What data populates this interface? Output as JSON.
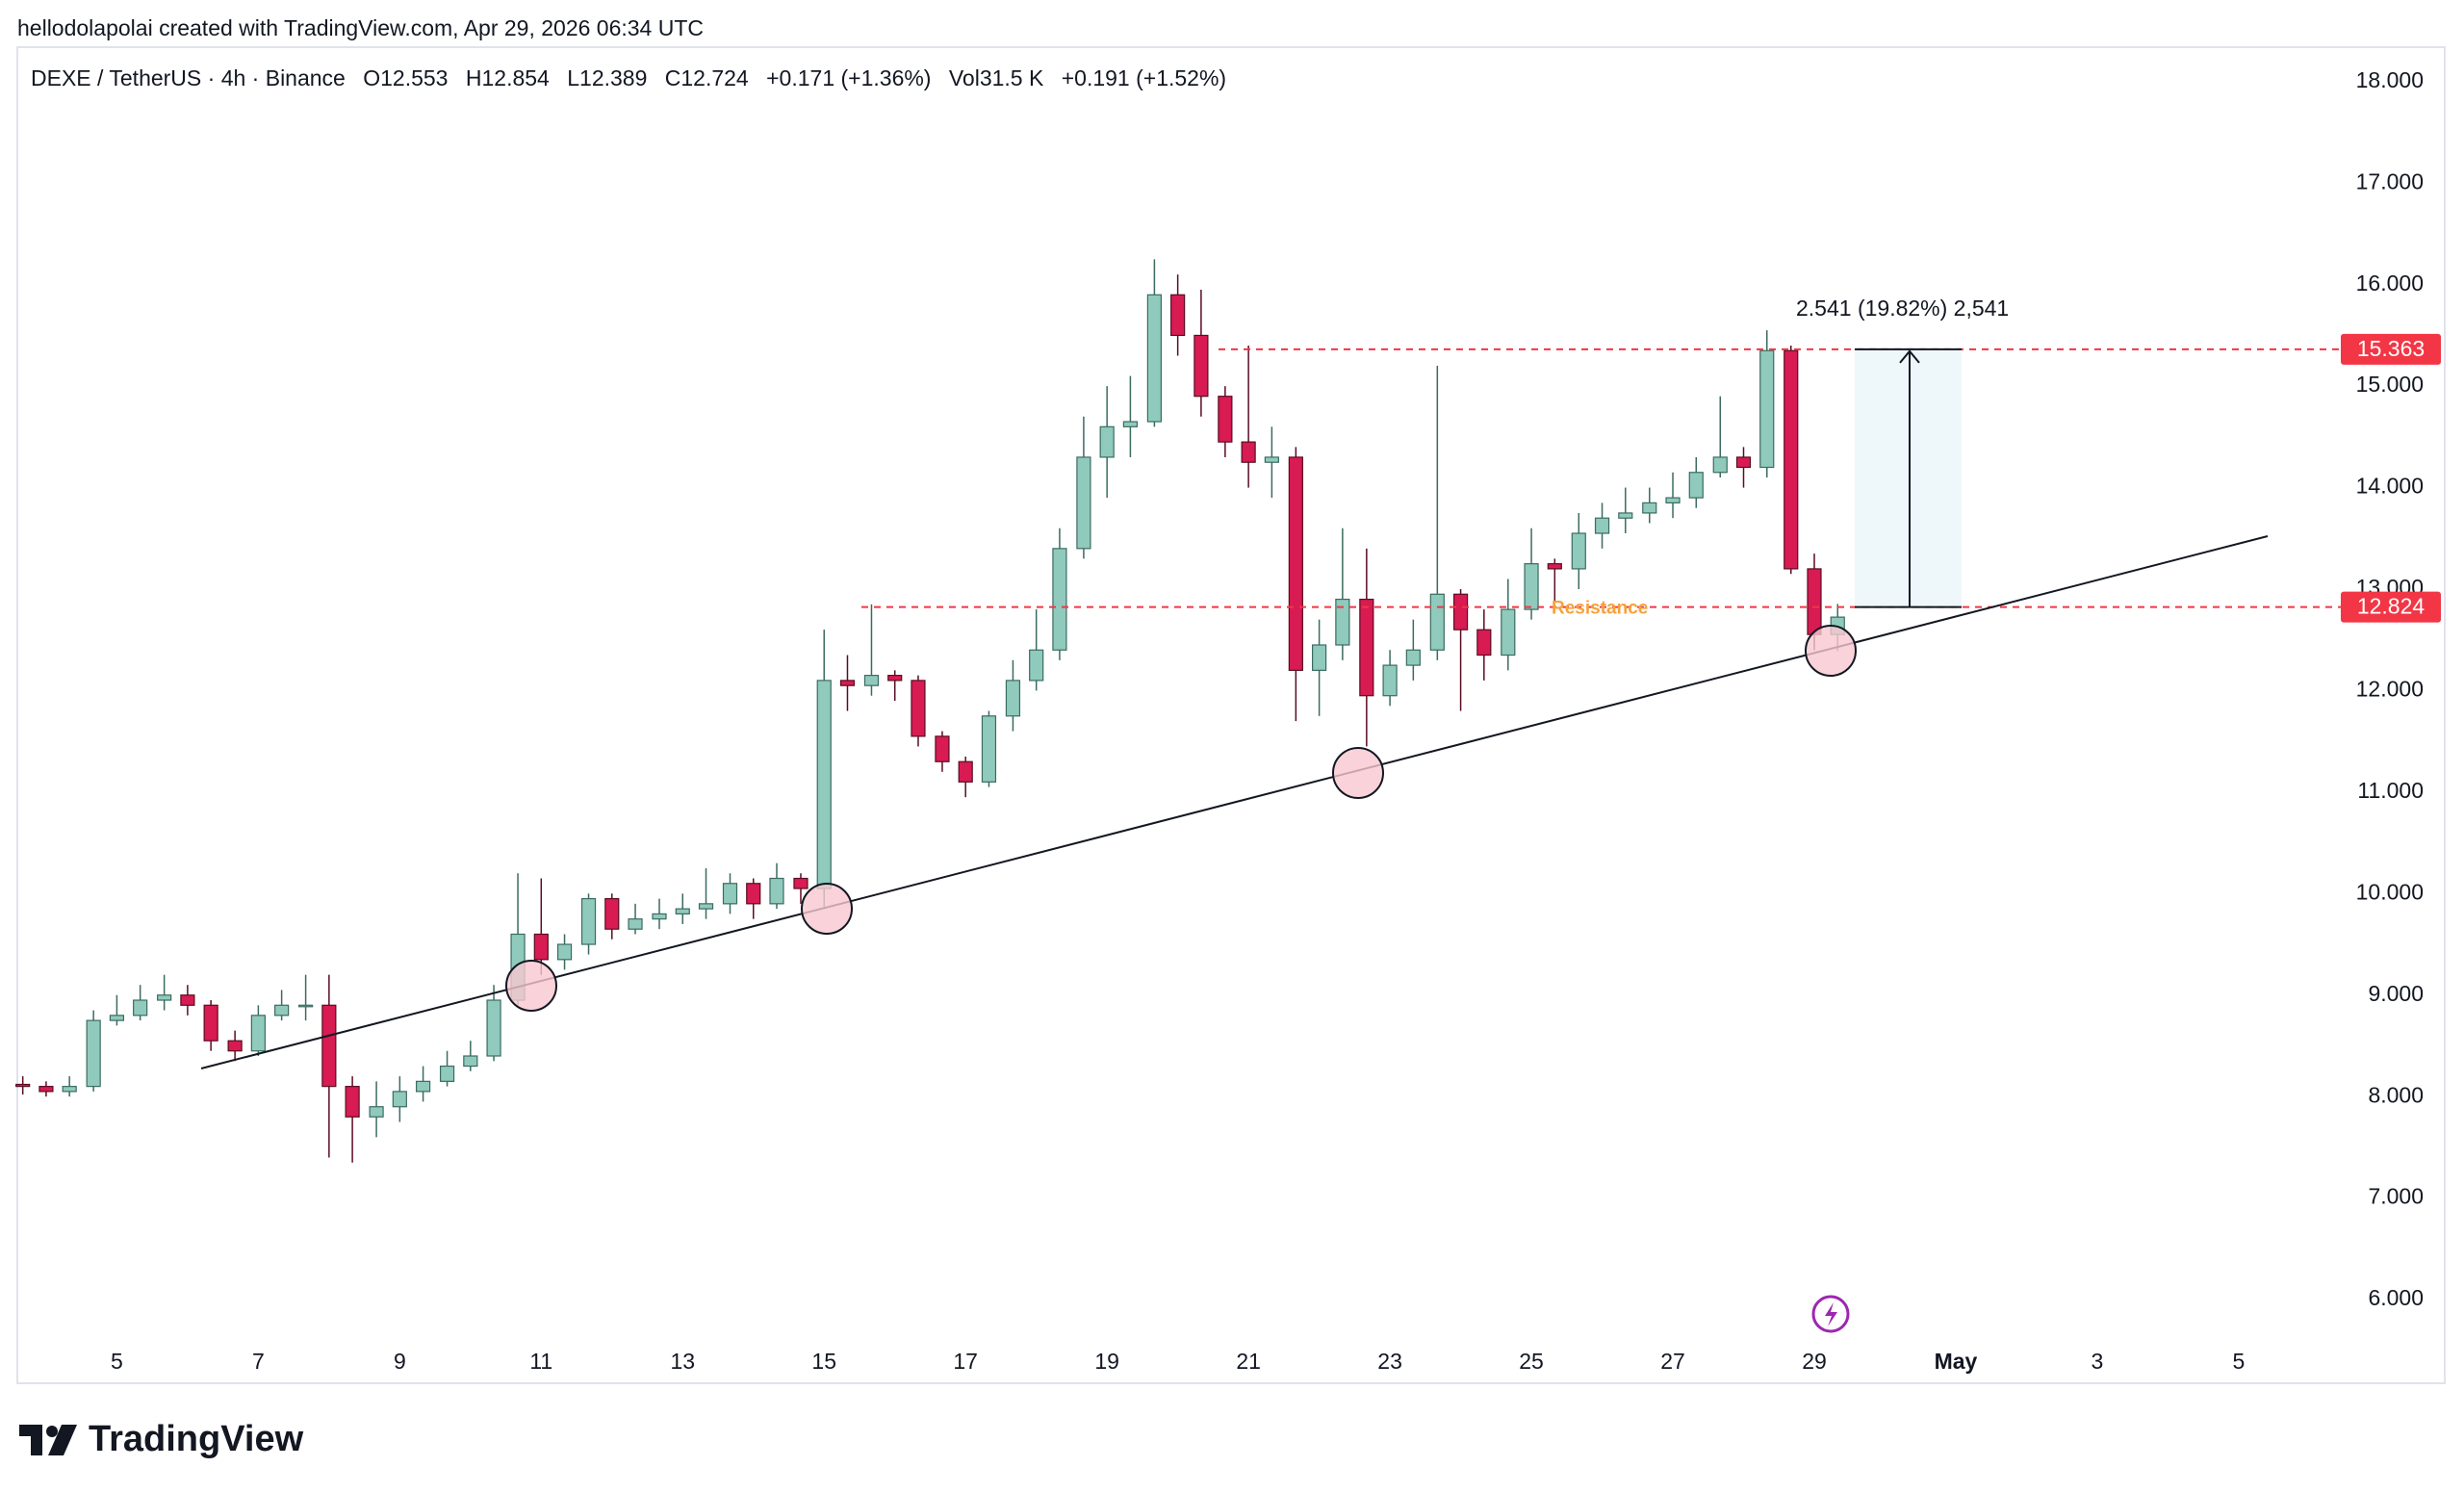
{
  "header": {
    "credit": "hellodolapolai created with TradingView.com, Apr 29, 2026 06:34 UTC",
    "symbol": "DEXE / TetherUS · 4h · Binance",
    "legend": [
      "O12.553",
      "H12.854",
      "L12.389",
      "C12.724",
      "+0.171 (+1.36%)",
      "Vol31.5 K",
      "+0.191 (+1.52%)"
    ]
  },
  "brand": "TradingView",
  "chart_data": {
    "type": "candlestick",
    "x": [
      3.67,
      4,
      4.33,
      4.67,
      5,
      5.33,
      5.67,
      6,
      6.33,
      6.67,
      7,
      7.33,
      7.67,
      8,
      8.33,
      8.67,
      9,
      9.33,
      9.67,
      10,
      10.33,
      10.67,
      11,
      11.33,
      11.67,
      12,
      12.33,
      12.67,
      13,
      13.33,
      13.67,
      14,
      14.33,
      14.67,
      15,
      15.33,
      15.67,
      16,
      16.33,
      16.67,
      17,
      17.33,
      17.67,
      18,
      18.33,
      18.67,
      19,
      19.33,
      19.67,
      20,
      20.33,
      20.67,
      21,
      21.33,
      21.67,
      22,
      22.33,
      22.67,
      23,
      23.33,
      23.67,
      24,
      24.33,
      24.67,
      25,
      25.33,
      25.67,
      26,
      26.33,
      26.67,
      27,
      27.33,
      27.67,
      28,
      28.33,
      28.67,
      29,
      29.33
    ],
    "open": [
      8.12,
      8.1,
      8.05,
      8.1,
      8.75,
      8.8,
      8.95,
      9.0,
      8.9,
      8.55,
      8.45,
      8.8,
      8.9,
      8.9,
      8.1,
      7.8,
      7.9,
      8.05,
      8.15,
      8.3,
      8.4,
      8.95,
      9.6,
      9.35,
      9.5,
      9.95,
      9.65,
      9.75,
      9.8,
      9.85,
      9.9,
      10.1,
      9.9,
      10.15,
      10.05,
      12.1,
      12.05,
      12.15,
      12.1,
      11.55,
      11.3,
      11.1,
      11.75,
      12.1,
      12.4,
      13.4,
      14.3,
      14.6,
      14.65,
      15.9,
      15.5,
      14.9,
      14.45,
      14.25,
      14.3,
      12.2,
      12.45,
      12.9,
      11.95,
      12.25,
      12.4,
      12.95,
      12.6,
      12.35,
      12.8,
      13.25,
      13.2,
      13.55,
      13.7,
      13.75,
      13.85,
      13.9,
      14.15,
      14.3,
      14.2,
      15.35,
      13.2,
      12.553
    ],
    "high": [
      8.2,
      8.15,
      8.2,
      8.85,
      9.0,
      9.1,
      9.2,
      9.1,
      8.95,
      8.65,
      8.9,
      9.05,
      9.2,
      9.2,
      8.2,
      8.15,
      8.2,
      8.3,
      8.45,
      8.55,
      9.1,
      10.2,
      10.15,
      9.6,
      10.0,
      10.0,
      9.9,
      9.95,
      10.0,
      10.25,
      10.2,
      10.15,
      10.3,
      10.2,
      12.6,
      12.35,
      12.85,
      12.2,
      12.15,
      11.6,
      11.35,
      11.8,
      12.3,
      12.8,
      13.6,
      14.7,
      15.0,
      15.1,
      16.25,
      16.1,
      15.95,
      15.0,
      15.4,
      14.6,
      14.4,
      12.7,
      13.6,
      13.4,
      12.4,
      12.7,
      15.2,
      13.0,
      12.8,
      13.1,
      13.6,
      13.3,
      13.75,
      13.85,
      14.0,
      14.0,
      14.15,
      14.3,
      14.9,
      14.4,
      15.55,
      15.4,
      13.35,
      12.854
    ],
    "low": [
      8.02,
      8.0,
      8.0,
      8.05,
      8.7,
      8.75,
      8.85,
      8.8,
      8.45,
      8.35,
      8.4,
      8.75,
      8.75,
      7.4,
      7.35,
      7.6,
      7.75,
      7.95,
      8.1,
      8.25,
      8.35,
      8.9,
      9.2,
      9.25,
      9.4,
      9.55,
      9.6,
      9.65,
      9.7,
      9.75,
      9.8,
      9.75,
      9.85,
      9.9,
      9.85,
      11.8,
      11.95,
      11.9,
      11.45,
      11.2,
      10.95,
      11.05,
      11.6,
      12.0,
      12.3,
      13.3,
      13.9,
      14.3,
      14.6,
      15.3,
      14.7,
      14.3,
      14.0,
      13.9,
      11.7,
      11.75,
      12.3,
      11.45,
      11.85,
      12.1,
      12.3,
      11.8,
      12.1,
      12.2,
      12.7,
      12.8,
      13.0,
      13.4,
      13.55,
      13.65,
      13.7,
      13.8,
      14.1,
      14.0,
      14.1,
      13.15,
      12.4,
      12.389
    ],
    "close": [
      8.1,
      8.05,
      8.1,
      8.75,
      8.8,
      8.95,
      9.0,
      8.9,
      8.55,
      8.45,
      8.8,
      8.9,
      8.9,
      8.1,
      7.8,
      7.9,
      8.05,
      8.15,
      8.3,
      8.4,
      8.95,
      9.6,
      9.35,
      9.5,
      9.95,
      9.65,
      9.75,
      9.8,
      9.85,
      9.9,
      10.1,
      9.9,
      10.15,
      10.05,
      12.1,
      12.05,
      12.15,
      12.1,
      11.55,
      11.3,
      11.1,
      11.75,
      12.1,
      12.4,
      13.4,
      14.3,
      14.6,
      14.65,
      15.9,
      15.5,
      14.9,
      14.45,
      14.25,
      14.3,
      12.2,
      12.45,
      12.9,
      11.95,
      12.25,
      12.4,
      12.95,
      12.6,
      12.35,
      12.8,
      13.25,
      13.2,
      13.55,
      13.7,
      13.75,
      13.85,
      13.9,
      14.15,
      14.3,
      14.2,
      15.35,
      13.2,
      12.553,
      12.724
    ],
    "up_color": "#8fcabd",
    "down_color": "#d81b52",
    "xlim": [
      3.62,
      36.24
    ],
    "ylim": [
      5.64,
      18.34
    ],
    "xticks": [
      5,
      7,
      9,
      11,
      13,
      15,
      17,
      19,
      21,
      23,
      25,
      27,
      29,
      {
        "value": 31,
        "label": "May"
      },
      {
        "value": 33,
        "label": "3"
      },
      {
        "value": 35,
        "label": "5"
      }
    ],
    "yticks": [
      {
        "value": 6,
        "label": "6.000"
      },
      {
        "value": 7,
        "label": "7.000"
      },
      {
        "value": 8,
        "label": "8.000"
      },
      {
        "value": 9,
        "label": "9.000"
      },
      {
        "value": 10,
        "label": "10.000"
      },
      {
        "value": 11,
        "label": "11.000"
      },
      {
        "value": 12,
        "label": "12.000"
      },
      {
        "value": 13,
        "label": "13.000"
      },
      {
        "value": 14,
        "label": "14.000"
      },
      {
        "value": 15,
        "label": "15.000"
      },
      {
        "value": 16,
        "label": "16.000"
      },
      {
        "value": 17,
        "label": "17.000"
      },
      {
        "value": 18,
        "label": "18.000"
      }
    ],
    "price_levels": [
      15.363,
      12.824
    ],
    "level_color": "#f23645",
    "annotations": {
      "resistance": "Resistance",
      "measure": "2.541 (19.82%) 2,541"
    }
  }
}
